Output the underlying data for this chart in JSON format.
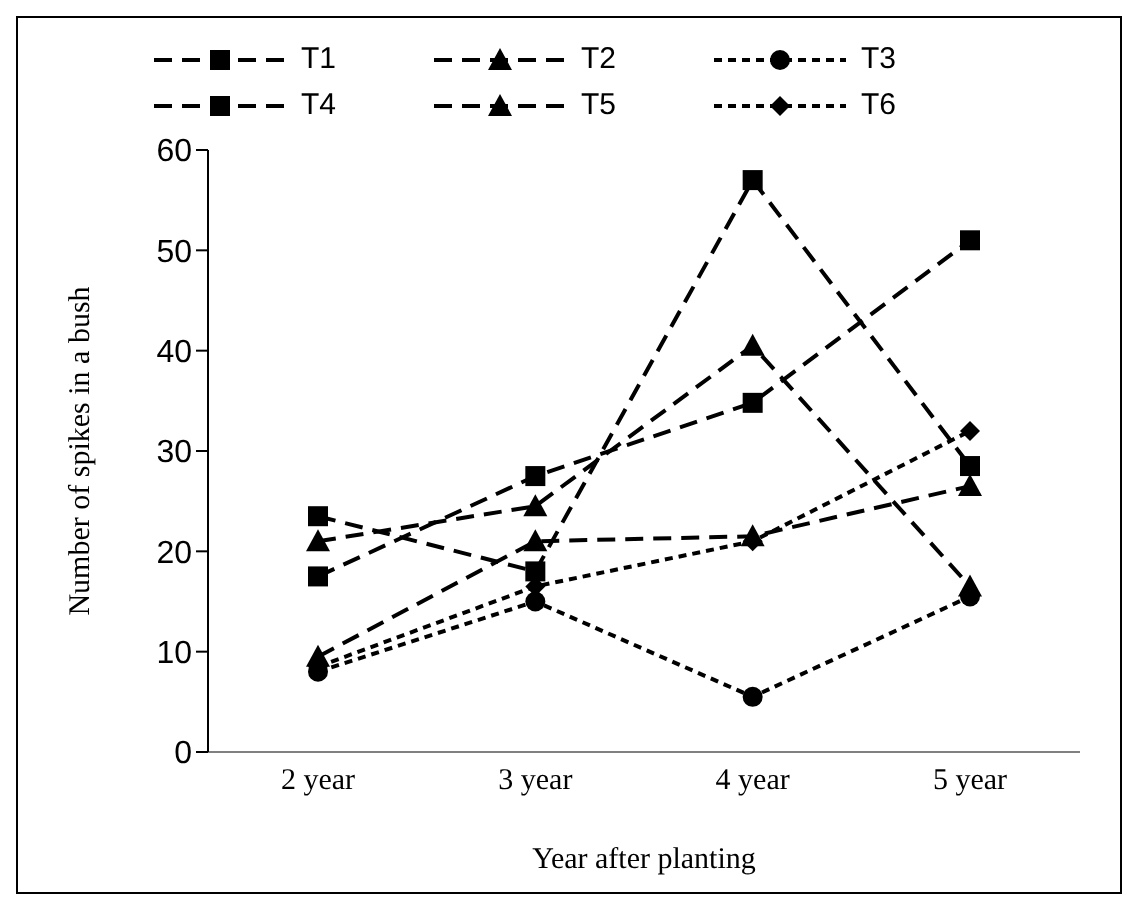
{
  "chart_data": {
    "type": "line",
    "xlabel": "Year after planting",
    "ylabel": "Number of spikes in a bush",
    "categories": [
      "2 year",
      "3 year",
      "4 year",
      "5 year"
    ],
    "ylim": [
      0,
      60
    ],
    "yticks": [
      0,
      10,
      20,
      30,
      40,
      50,
      60
    ],
    "grid": false,
    "legend": "top",
    "series": [
      {
        "name": "T1",
        "color": "#000000",
        "marker": "square",
        "line_style": "dashed",
        "values": [
          23.5,
          18,
          57,
          28.5
        ]
      },
      {
        "name": "T2",
        "color": "#000000",
        "marker": "triangle",
        "line_style": "dashed",
        "values": [
          21,
          24.5,
          40.5,
          16.5
        ]
      },
      {
        "name": "T3",
        "color": "#000000",
        "marker": "circle",
        "line_style": "dotted",
        "values": [
          8,
          15,
          5.5,
          15.5
        ]
      },
      {
        "name": "T4",
        "color": "#000000",
        "marker": "square",
        "line_style": "dashed",
        "values": [
          17.5,
          27.5,
          34.8,
          51
        ]
      },
      {
        "name": "T5",
        "color": "#000000",
        "marker": "triangle",
        "line_style": "dashed",
        "values": [
          9.5,
          21,
          21.5,
          26.5
        ]
      },
      {
        "name": "T6",
        "color": "#000000",
        "marker": "diamond",
        "line_style": "dotted",
        "values": [
          8.5,
          16.5,
          21,
          32
        ]
      }
    ]
  }
}
